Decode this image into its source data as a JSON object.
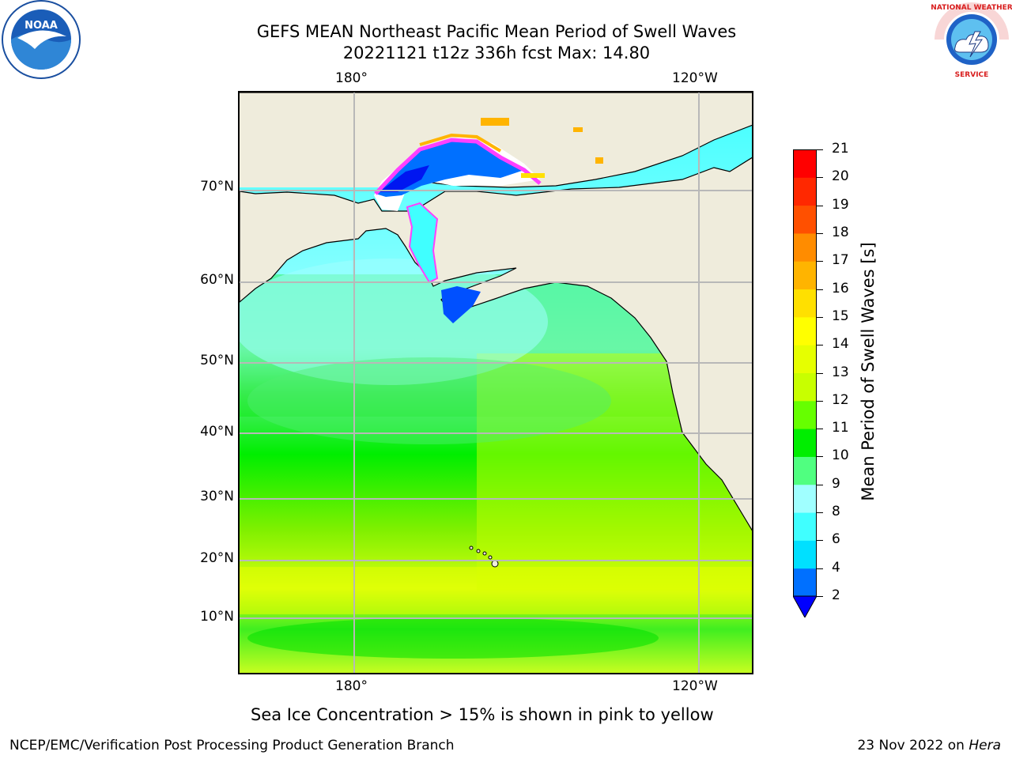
{
  "title_line1": "GEFS MEAN Northeast Pacific Mean Period of Swell Waves",
  "title_line2": "20221121 t12z 336h fcst   Max: 14.80",
  "lon_labels": {
    "left": "180°",
    "right": "120°W"
  },
  "lat_labels": {
    "l70": "70°N",
    "l60": "60°N",
    "l50": "50°N",
    "l40": "40°N",
    "l30": "30°N",
    "l20": "20°N",
    "l10": "10°N"
  },
  "colorbar": {
    "label": "Mean Period of Swell Waves [s]",
    "ticks": [
      "2",
      "4",
      "6",
      "8",
      "9",
      "10",
      "11",
      "12",
      "13",
      "14",
      "15",
      "16",
      "17",
      "18",
      "19",
      "20",
      "21"
    ],
    "colors": [
      "#0070ff",
      "#00e0ff",
      "#40ffff",
      "#a0ffff",
      "#50ff80",
      "#00ee00",
      "#66ff00",
      "#c8ff00",
      "#e6ff00",
      "#ffff00",
      "#ffe000",
      "#ffb400",
      "#ff8c00",
      "#ff5000",
      "#ff2800",
      "#ff0000"
    ],
    "under_color": "#0000ff"
  },
  "subtitle": "Sea Ice Concentration > 15% is shown in pink to yellow",
  "footer": {
    "left": "NCEP/EMC/Verification Post Processing Product Generation Branch",
    "right_date": "23 Nov 2022 on ",
    "right_host": "Hera"
  },
  "logos": {
    "left": "NOAA",
    "right_text": "NATIONAL WEATHER SERVICE"
  }
}
